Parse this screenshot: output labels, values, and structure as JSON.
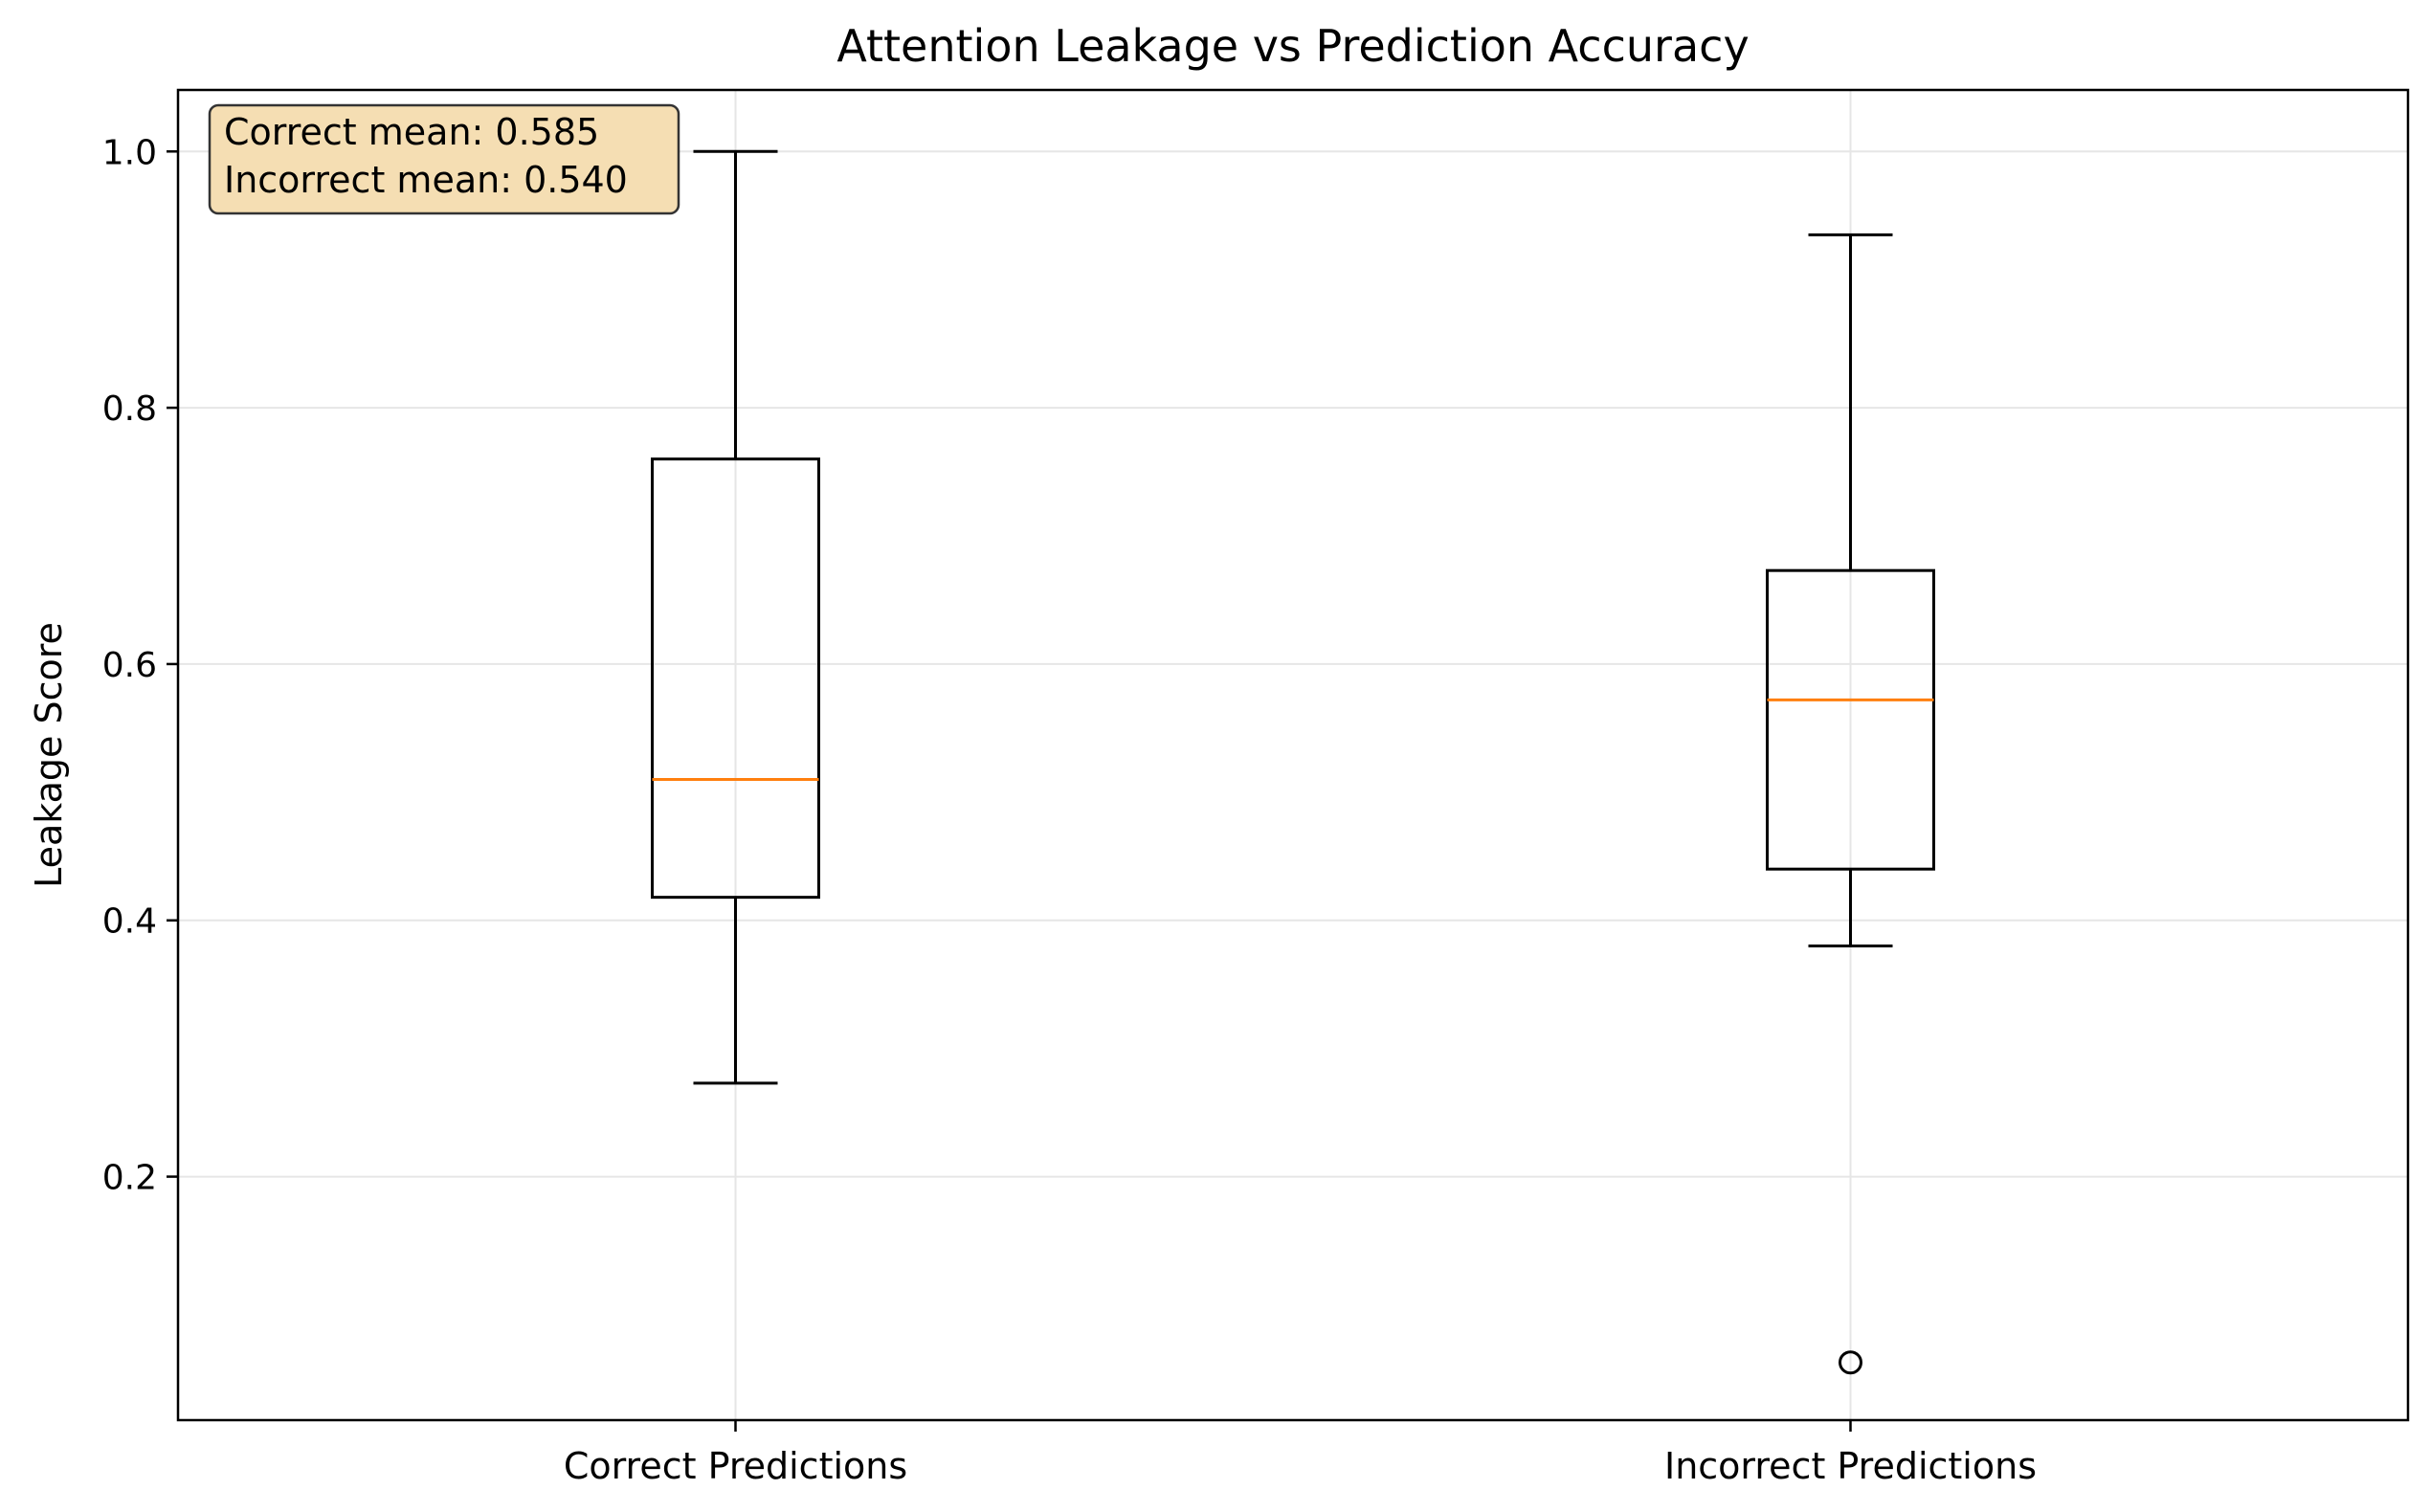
{
  "chart_data": {
    "type": "box",
    "title": "Attention Leakage vs Prediction Accuracy",
    "xlabel": "",
    "ylabel": "Leakage Score",
    "categories": [
      "Correct Predictions",
      "Incorrect Predictions"
    ],
    "boxes": [
      {
        "category": "Correct Predictions",
        "whisker_low": 0.273,
        "q1": 0.418,
        "median": 0.51,
        "q3": 0.76,
        "whisker_high": 1.0,
        "outliers": []
      },
      {
        "category": "Incorrect Predictions",
        "whisker_low": 0.38,
        "q1": 0.44,
        "median": 0.572,
        "q3": 0.673,
        "whisker_high": 0.935,
        "outliers": [
          0.055
        ]
      }
    ],
    "ylim": [
      0.01,
      1.048
    ],
    "yticks": [
      0.2,
      0.4,
      0.6,
      0.8,
      1.0
    ],
    "ytick_labels": [
      "0.2",
      "0.4",
      "0.6",
      "0.8",
      "1.0"
    ],
    "grid": true,
    "colors": {
      "box": "#000000",
      "median": "#ff7f0e",
      "grid": "#e6e6e6",
      "annotation_fill": "#f5deb3",
      "annotation_edge": "#333333"
    },
    "annotation": {
      "lines": [
        "Correct mean: 0.585",
        "Incorrect mean: 0.540"
      ],
      "placement": "top-left"
    }
  }
}
